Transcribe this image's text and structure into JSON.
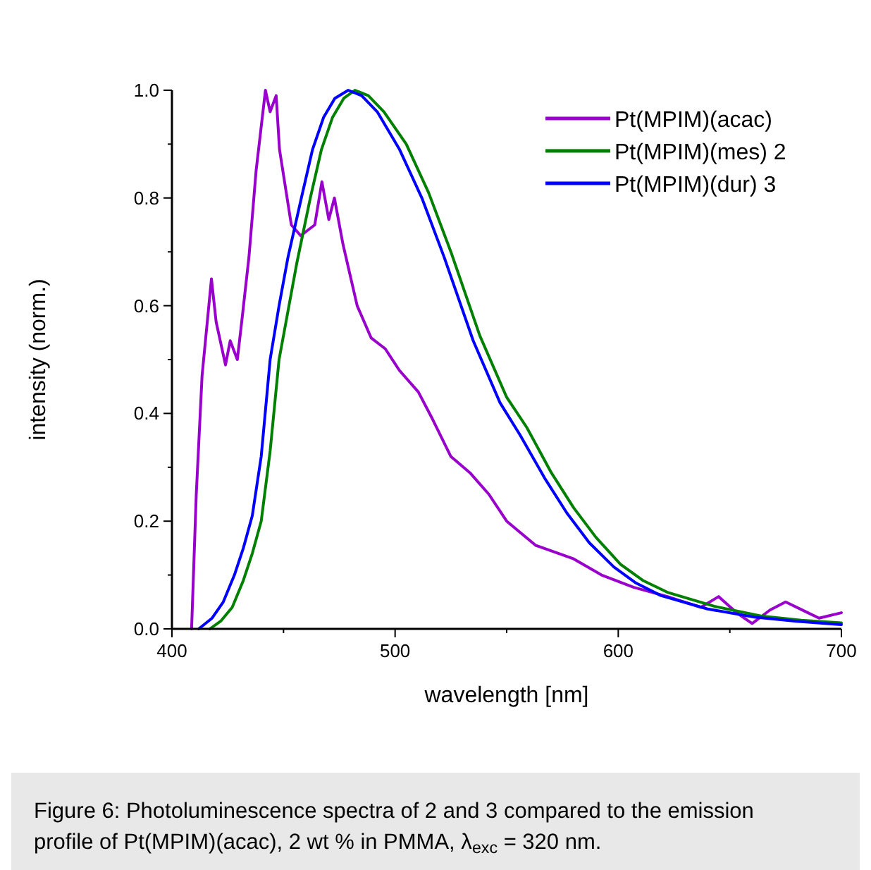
{
  "chart_data": {
    "type": "line",
    "xlabel": "wavelength [nm]",
    "ylabel": "intensity (norm.)",
    "xlim": [
      400,
      700
    ],
    "ylim": [
      0,
      1
    ],
    "xticks": [
      400,
      {
        "value": 450,
        "label": null
      },
      500,
      {
        "value": 550,
        "label": null
      },
      600,
      {
        "value": 650,
        "label": null
      },
      700
    ],
    "yticks": [
      {
        "value": 0,
        "label": "0.0"
      },
      {
        "value": 0.1,
        "label": null
      },
      {
        "value": 0.2,
        "label": "0.2"
      },
      {
        "value": 0.3,
        "label": null
      },
      {
        "value": 0.4,
        "label": "0.4"
      },
      {
        "value": 0.5,
        "label": null
      },
      {
        "value": 0.6,
        "label": "0.6"
      },
      {
        "value": 0.7,
        "label": null
      },
      {
        "value": 0.8,
        "label": "0.8"
      },
      {
        "value": 0.9,
        "label": null
      },
      {
        "value": 1,
        "label": "1.0"
      }
    ],
    "grid": false,
    "legend": "top right",
    "marker": "none",
    "line_style": "solid",
    "series": [
      {
        "name": "Pt(MPIM)(acac)",
        "color": "#9900cc",
        "x": [
          408.8,
          410.9,
          413.5,
          417.7,
          419.8,
          424,
          426.1,
          429.3,
          431.4,
          434.5,
          437.7,
          441.9,
          444,
          446.7,
          448.2,
          453.5,
          457.7,
          464,
          467.2,
          470.3,
          472.8,
          476.6,
          483,
          489.3,
          495.6,
          501.9,
          510.4,
          516.7,
          525,
          533.5,
          542,
          550,
          563,
          580,
          592.5,
          607,
          622,
          637,
          645,
          653,
          660,
          668,
          675,
          685,
          690,
          700
        ],
        "values": [
          0,
          0.25,
          0.47,
          0.65,
          0.57,
          0.49,
          0.535,
          0.5,
          0.575,
          0.69,
          0.85,
          1,
          0.96,
          0.99,
          0.89,
          0.75,
          0.73,
          0.75,
          0.83,
          0.76,
          0.8,
          0.715,
          0.6,
          0.54,
          0.52,
          0.48,
          0.44,
          0.39,
          0.32,
          0.29,
          0.25,
          0.2,
          0.155,
          0.13,
          0.1,
          0.077,
          0.06,
          0.04,
          0.06,
          0.03,
          0.01,
          0.035,
          0.05,
          0.03,
          0.02,
          0.03
        ]
      },
      {
        "name": "Pt(MPIM)(mes) 2",
        "color": "#008000",
        "x": [
          417,
          422,
          427,
          432,
          436,
          440,
          444,
          448,
          452,
          456,
          462,
          467,
          472,
          477,
          482,
          488,
          495,
          505,
          515,
          525,
          538,
          550,
          559,
          570,
          580,
          590,
          601,
          611,
          622,
          643,
          664,
          682,
          700
        ],
        "values": [
          0,
          0.015,
          0.04,
          0.09,
          0.14,
          0.2,
          0.33,
          0.5,
          0.59,
          0.68,
          0.8,
          0.89,
          0.95,
          0.985,
          1,
          0.99,
          0.96,
          0.9,
          0.81,
          0.7,
          0.544,
          0.43,
          0.374,
          0.29,
          0.225,
          0.17,
          0.12,
          0.09,
          0.068,
          0.042,
          0.024,
          0.016,
          0.011
        ]
      },
      {
        "name": "Pt(MPIM)(dur) 3",
        "color": "#0000ff",
        "x": [
          412,
          418,
          423,
          428,
          432,
          436,
          440,
          444,
          448,
          452,
          458,
          463,
          468,
          473,
          479,
          485,
          492,
          502,
          512,
          522,
          535,
          547,
          556,
          567,
          577,
          587,
          598,
          608,
          619,
          640,
          661,
          680,
          700
        ],
        "values": [
          0,
          0.02,
          0.05,
          0.1,
          0.15,
          0.21,
          0.32,
          0.5,
          0.6,
          0.69,
          0.8,
          0.89,
          0.95,
          0.985,
          1,
          0.99,
          0.96,
          0.89,
          0.8,
          0.69,
          0.535,
          0.42,
          0.36,
          0.28,
          0.215,
          0.16,
          0.115,
          0.085,
          0.062,
          0.037,
          0.022,
          0.014,
          0.008
        ]
      }
    ],
    "annotations": [
      "Figure 6: Photoluminescence spectra of 2 and 3 compared to the emission profile of Pt(MPIM)(acac), 2 wt % in PMMA, λ$_{exc}$ = 320 nm."
    ]
  }
}
